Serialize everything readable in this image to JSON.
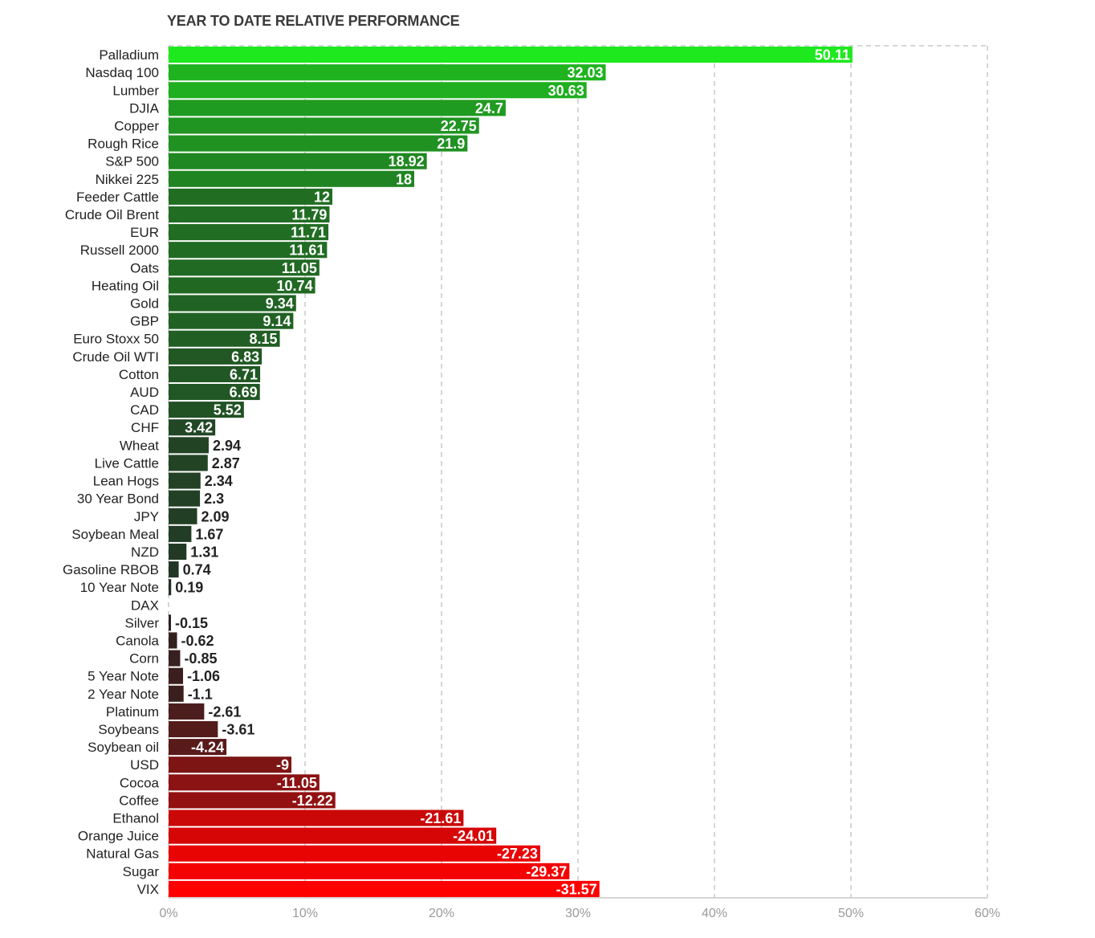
{
  "chart_data": {
    "type": "bar",
    "orientation": "horizontal",
    "title": "YEAR TO DATE RELATIVE PERFORMANCE",
    "xlabel": "",
    "ylabel": "",
    "x_range": [
      0,
      60
    ],
    "x_ticks": [
      "0%",
      "10%",
      "20%",
      "30%",
      "40%",
      "50%",
      "60%"
    ],
    "grid": true,
    "bar_length": "absolute value",
    "categories": [
      "Palladium",
      "Nasdaq 100",
      "Lumber",
      "DJIA",
      "Copper",
      "Rough Rice",
      "S&P 500",
      "Nikkei 225",
      "Feeder Cattle",
      "Crude Oil Brent",
      "EUR",
      "Russell 2000",
      "Oats",
      "Heating Oil",
      "Gold",
      "GBP",
      "Euro Stoxx 50",
      "Crude Oil WTI",
      "Cotton",
      "AUD",
      "CAD",
      "CHF",
      "Wheat",
      "Live Cattle",
      "Lean Hogs",
      "30 Year Bond",
      "JPY",
      "Soybean Meal",
      "NZD",
      "Gasoline RBOB",
      "10 Year Note",
      "DAX",
      "Silver",
      "Canola",
      "Corn",
      "5 Year Note",
      "2 Year Note",
      "Platinum",
      "Soybeans",
      "Soybean oil",
      "USD",
      "Cocoa",
      "Coffee",
      "Ethanol",
      "Orange Juice",
      "Natural Gas",
      "Sugar",
      "VIX"
    ],
    "values": [
      50.11,
      32.03,
      30.63,
      24.7,
      22.75,
      21.9,
      18.92,
      18,
      12,
      11.79,
      11.71,
      11.61,
      11.05,
      10.74,
      9.34,
      9.14,
      8.15,
      6.83,
      6.71,
      6.69,
      5.52,
      3.42,
      2.94,
      2.87,
      2.34,
      2.3,
      2.09,
      1.67,
      1.31,
      0.74,
      0.19,
      null,
      -0.15,
      -0.62,
      -0.85,
      -1.06,
      -1.1,
      -2.61,
      -3.61,
      -4.24,
      -9,
      -11.05,
      -12.22,
      -21.61,
      -24.01,
      -27.23,
      -29.37,
      -31.57
    ],
    "value_labels": [
      "50.11",
      "32.03",
      "30.63",
      "24.7",
      "22.75",
      "21.9",
      "18.92",
      "18",
      "12",
      "11.79",
      "11.71",
      "11.61",
      "11.05",
      "10.74",
      "9.34",
      "9.14",
      "8.15",
      "6.83",
      "6.71",
      "6.69",
      "5.52",
      "3.42",
      "2.94",
      "2.87",
      "2.34",
      "2.3",
      "2.09",
      "1.67",
      "1.31",
      "0.74",
      "0.19",
      "",
      "-0.15",
      "-0.62",
      "-0.85",
      "-1.06",
      "-1.1",
      "-2.61",
      "-3.61",
      "-4.24",
      "-9",
      "-11.05",
      "-12.22",
      "-21.61",
      "-24.01",
      "-27.23",
      "-29.37",
      "-31.57"
    ],
    "colors": {
      "positive_strong": "#1ee81e",
      "positive_weak": "#222e26",
      "negative_weak": "#2a2222",
      "negative_strong": "#ff0000",
      "grid": "#c8c8c8",
      "tick_text": "#9a9a9a",
      "label_dark": "#222222",
      "label_light": "#ffffff"
    }
  }
}
